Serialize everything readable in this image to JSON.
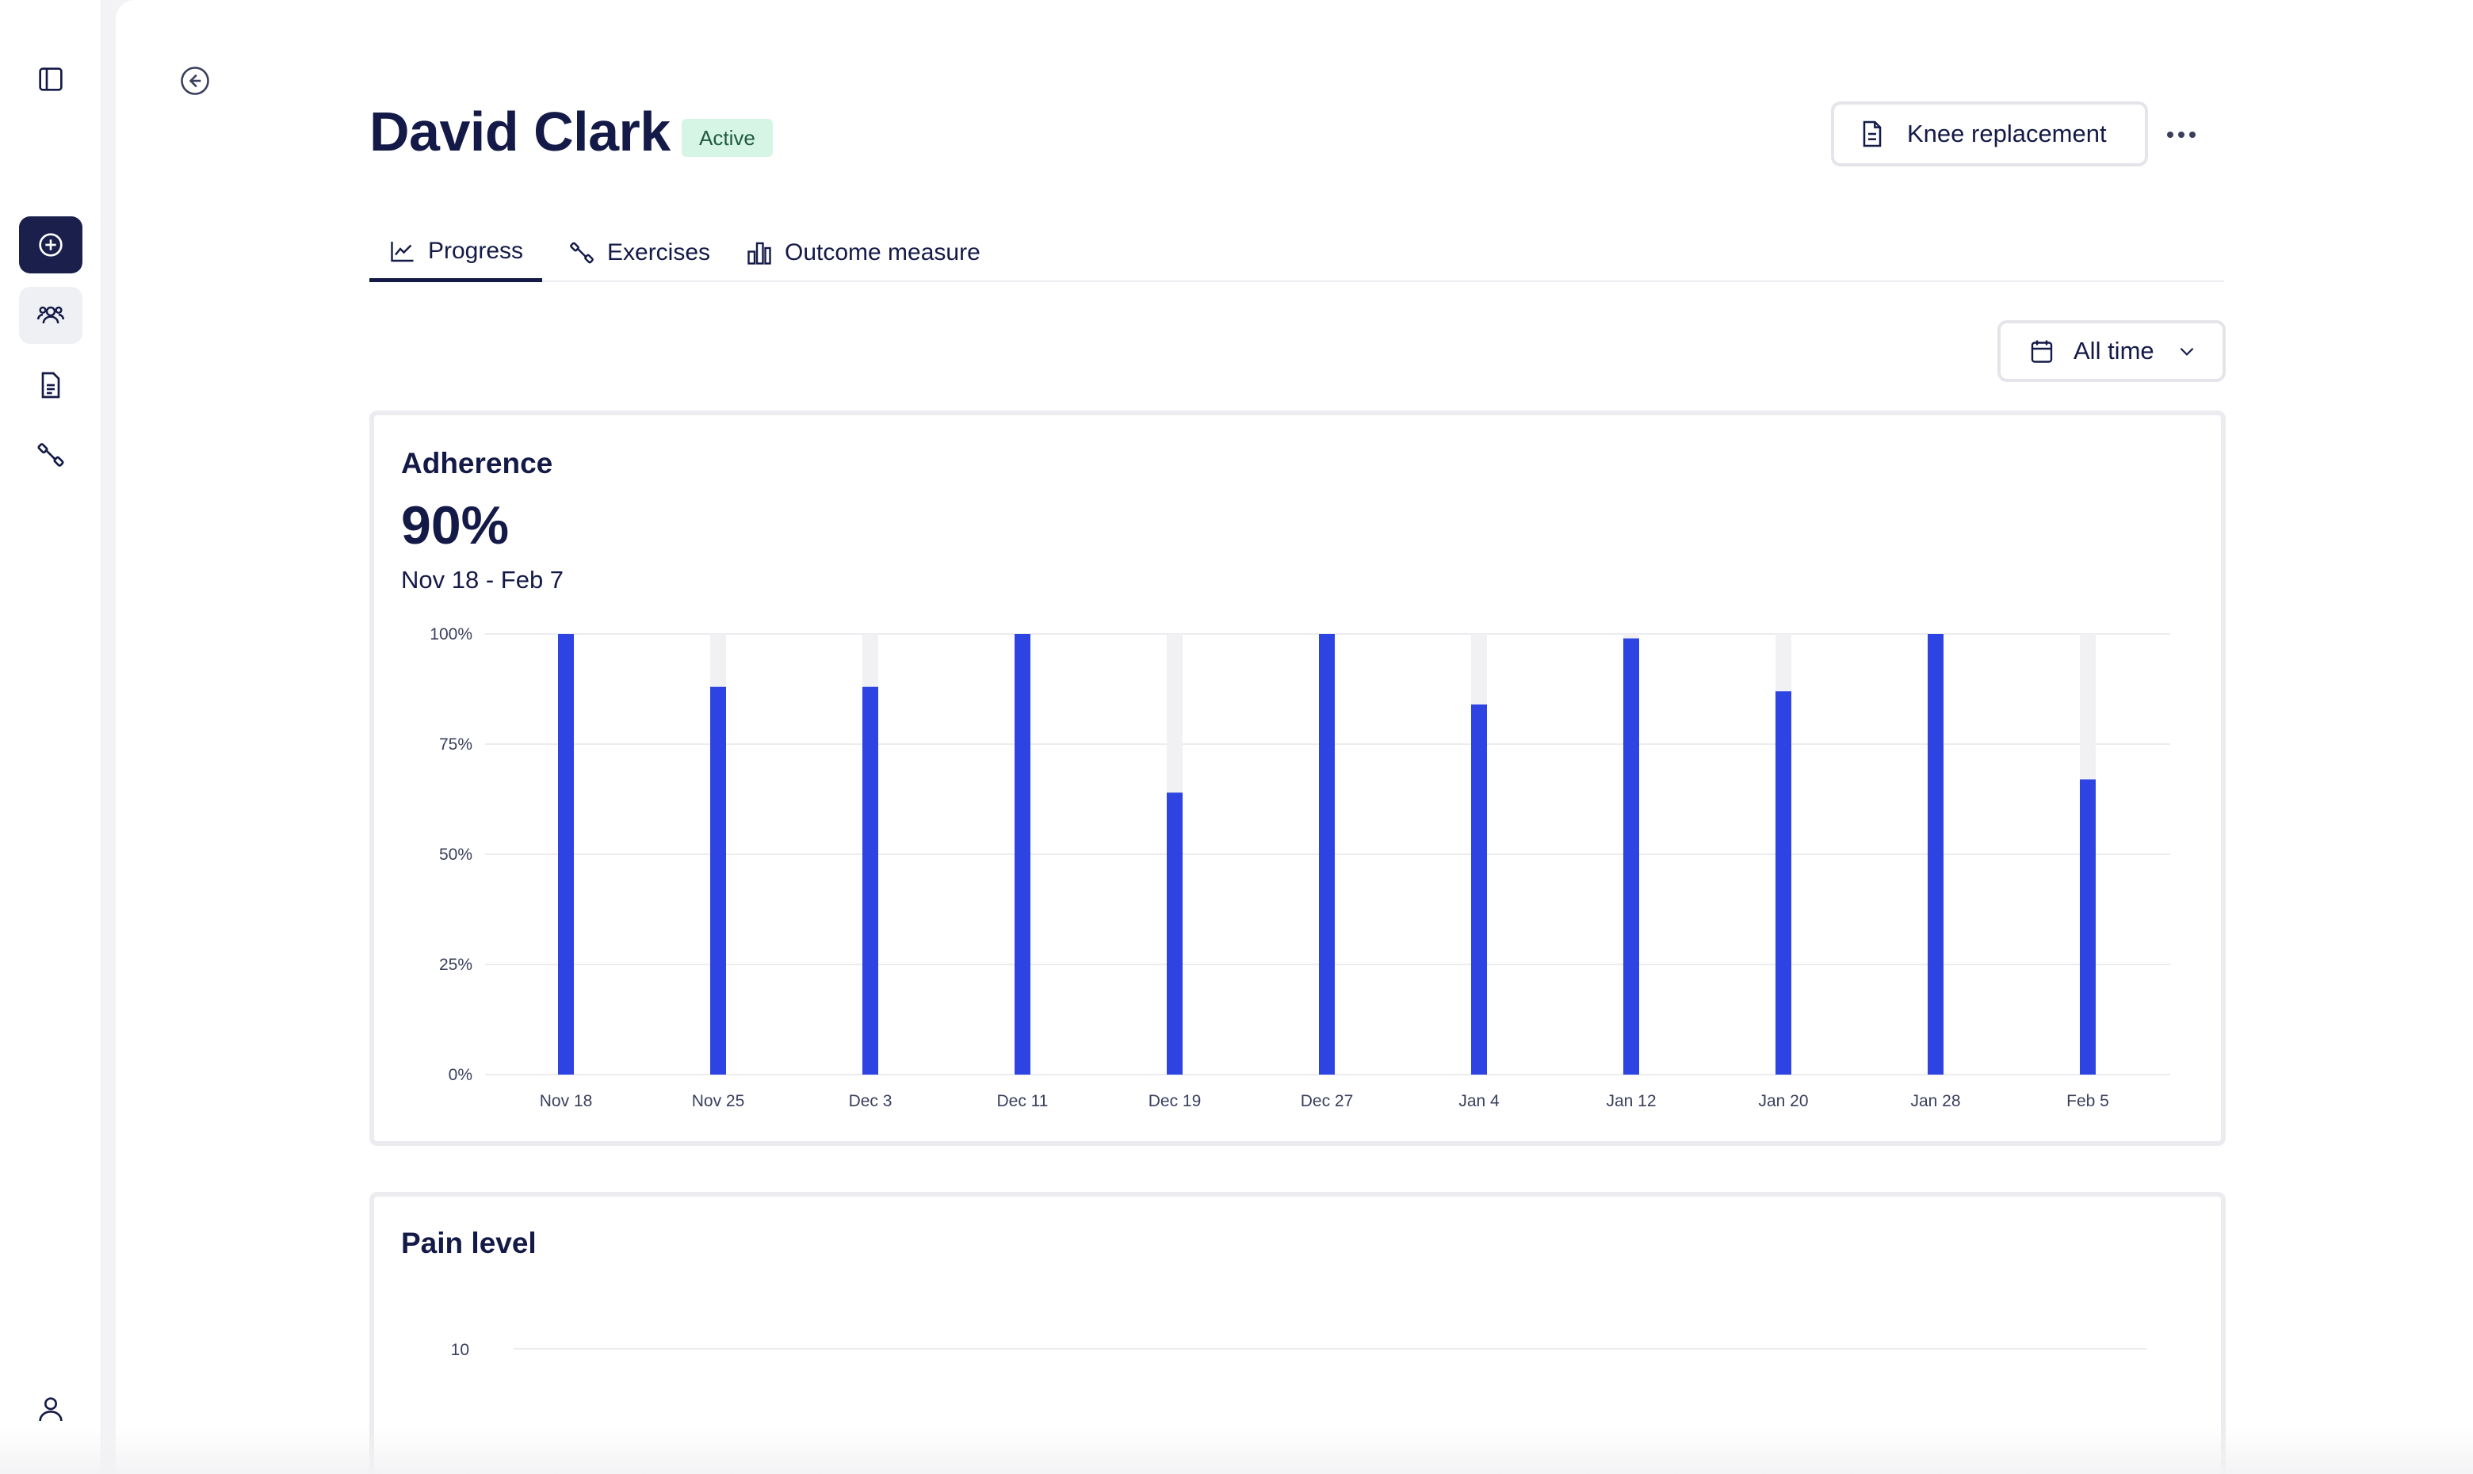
{
  "sidebar": {
    "items": [
      {
        "name": "toggle-sidebar",
        "icon": "panel-icon"
      },
      {
        "name": "add-new",
        "icon": "plus-circle-icon"
      },
      {
        "name": "patients",
        "icon": "users-icon"
      },
      {
        "name": "documents",
        "icon": "document-icon"
      },
      {
        "name": "exercises",
        "icon": "dumbbell-icon"
      },
      {
        "name": "profile",
        "icon": "user-icon"
      }
    ]
  },
  "header": {
    "patient_name": "David Clark",
    "status": "Active",
    "condition_label": "Knee replacement"
  },
  "tabs": [
    {
      "label": "Progress",
      "icon": "line-chart-icon",
      "active": true
    },
    {
      "label": "Exercises",
      "icon": "dumbbell-icon",
      "active": false
    },
    {
      "label": "Outcome measure",
      "icon": "bar-chart-icon",
      "active": false
    }
  ],
  "filter": {
    "range_label": "All time"
  },
  "adherence": {
    "title": "Adherence",
    "value": "90%",
    "date_range": "Nov 18 - Feb 7"
  },
  "pain": {
    "title": "Pain level",
    "y_tick_top": "10"
  },
  "colors": {
    "bar": "#2d44e2",
    "track": "#f1f1f4",
    "primary": "#1a1f4b"
  },
  "chart_data": [
    {
      "type": "bar",
      "title": "Adherence",
      "categories": [
        "Nov 18",
        "Nov 25",
        "Dec 3",
        "Dec 11",
        "Dec 19",
        "Dec 27",
        "Jan 4",
        "Jan 12",
        "Jan 20",
        "Jan 28",
        "Feb 5"
      ],
      "values": [
        100,
        88,
        88,
        100,
        64,
        100,
        84,
        99,
        87,
        100,
        67
      ],
      "y_ticks": [
        "0%",
        "25%",
        "50%",
        "75%",
        "100%"
      ],
      "ylim": [
        0,
        100
      ],
      "xlabel": "",
      "ylabel": ""
    },
    {
      "type": "line",
      "title": "Pain level",
      "y_ticks": [
        "10"
      ],
      "ylim": [
        0,
        10
      ]
    }
  ]
}
